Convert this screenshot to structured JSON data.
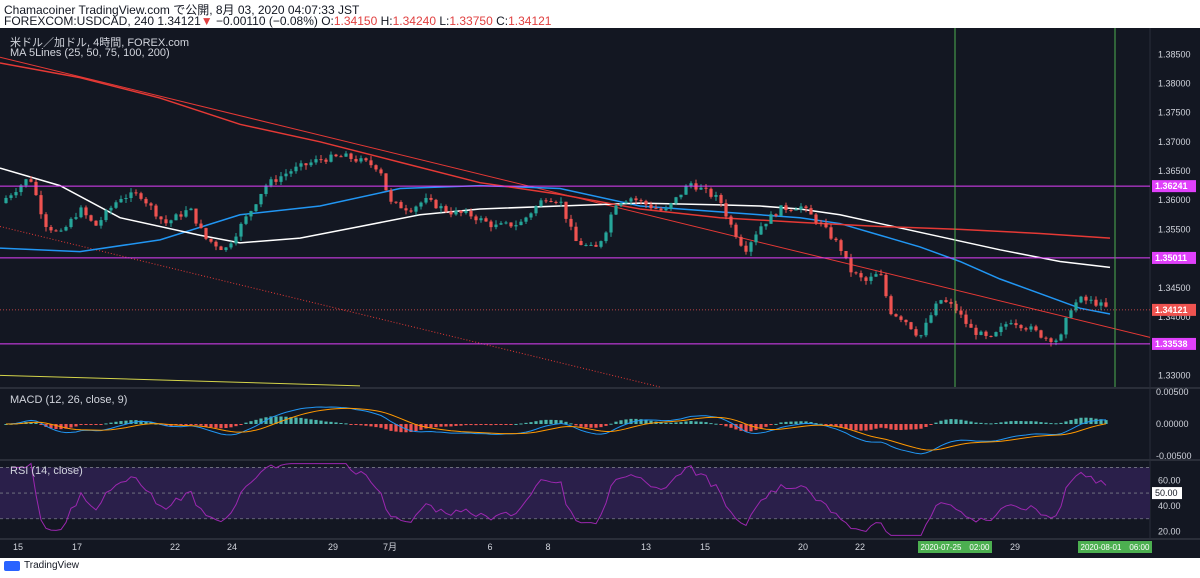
{
  "header": {
    "line1": "Chamacoiner TradingView.com で公開, 8月 03, 2020 04:07:33 JST",
    "symbol": "FOREXCOM:USDCAD, 240",
    "last": "1.34121",
    "change": "−0.00110 (−0.08%)",
    "o_label": "O:",
    "o": "1.34150",
    "h_label": "H:",
    "h": "1.34240",
    "l_label": "L:",
    "l": "1.33750",
    "c_label": "C:",
    "c": "1.34121"
  },
  "pane_labels": {
    "main_title": "米ドル／加ドル, 4時間, FOREX.com",
    "ma": "MA 5Lines (25, 50, 75, 100, 200)",
    "macd": "MACD (12, 26, close, 9)",
    "rsi": "RSI (14, close)"
  },
  "footer": {
    "brand": "TradingView"
  },
  "colors": {
    "background": "#131722",
    "up": "#26a69a",
    "down": "#ef5350",
    "ma25": "#2196f3",
    "ma75": "#ffffff",
    "ma200": "#e53935",
    "ma_yellow": "#d4d44a",
    "level": "#e040fb",
    "vline": "#4caf50",
    "rsi_band": "#2a1f4a",
    "rsi_line": "#9c27b0"
  },
  "chart_data": [
    {
      "type": "candlestick",
      "symbol": "USDCAD",
      "timeframe": "4時間",
      "y_ticks": [
        "1.38500",
        "1.38000",
        "1.37500",
        "1.37000",
        "1.36500",
        "1.36000",
        "1.35500",
        "1.35000",
        "1.34500",
        "1.34000",
        "1.33500",
        "1.33000"
      ],
      "ylim": [
        1.328,
        1.3895
      ],
      "x_ticks": [
        "15",
        "17",
        "22",
        "24",
        "29",
        "7月",
        "6",
        "8",
        "13",
        "15",
        "20",
        "22",
        "29"
      ],
      "price_labels": [
        {
          "value": 1.36241,
          "text": "1.36241",
          "kind": "level"
        },
        {
          "value": 1.35011,
          "text": "1.35011",
          "kind": "level"
        },
        {
          "value": 1.34121,
          "text": "1.34121",
          "kind": "last"
        },
        {
          "value": 1.33538,
          "text": "1.33538",
          "kind": "level"
        }
      ],
      "time_labels": [
        "2020-07-25　02:00",
        "2020-08-01　06:00"
      ],
      "anchors": [
        [
          0,
          1.3595
        ],
        [
          30,
          1.364
        ],
        [
          45,
          1.356
        ],
        [
          60,
          1.354
        ],
        [
          80,
          1.3585
        ],
        [
          95,
          1.3555
        ],
        [
          120,
          1.3605
        ],
        [
          140,
          1.361
        ],
        [
          165,
          1.356
        ],
        [
          190,
          1.3585
        ],
        [
          205,
          1.3535
        ],
        [
          225,
          1.3515
        ],
        [
          250,
          1.358
        ],
        [
          265,
          1.3625
        ],
        [
          290,
          1.365
        ],
        [
          320,
          1.367
        ],
        [
          345,
          1.3675
        ],
        [
          365,
          1.3665
        ],
        [
          380,
          1.3655
        ],
        [
          390,
          1.3595
        ],
        [
          410,
          1.3585
        ],
        [
          425,
          1.36
        ],
        [
          450,
          1.358
        ],
        [
          470,
          1.3575
        ],
        [
          495,
          1.3555
        ],
        [
          520,
          1.356
        ],
        [
          545,
          1.3605
        ],
        [
          560,
          1.36
        ],
        [
          575,
          1.353
        ],
        [
          595,
          1.3515
        ],
        [
          605,
          1.3545
        ],
        [
          615,
          1.3595
        ],
        [
          630,
          1.3605
        ],
        [
          650,
          1.359
        ],
        [
          665,
          1.358
        ],
        [
          690,
          1.363
        ],
        [
          705,
          1.3615
        ],
        [
          720,
          1.36
        ],
        [
          730,
          1.356
        ],
        [
          745,
          1.3515
        ],
        [
          760,
          1.3555
        ],
        [
          780,
          1.3585
        ],
        [
          800,
          1.359
        ],
        [
          820,
          1.356
        ],
        [
          840,
          1.352
        ],
        [
          850,
          1.348
        ],
        [
          865,
          1.346
        ],
        [
          880,
          1.3475
        ],
        [
          890,
          1.341
        ],
        [
          905,
          1.3395
        ],
        [
          920,
          1.3365
        ],
        [
          930,
          1.34
        ],
        [
          940,
          1.343
        ],
        [
          955,
          1.3415
        ],
        [
          970,
          1.338
        ],
        [
          990,
          1.336
        ],
        [
          1010,
          1.3395
        ],
        [
          1030,
          1.338
        ],
        [
          1045,
          1.3365
        ],
        [
          1060,
          1.336
        ],
        [
          1070,
          1.3415
        ],
        [
          1080,
          1.343
        ],
        [
          1095,
          1.3425
        ],
        [
          1110,
          1.3412
        ]
      ],
      "moving_averages": [
        {
          "name": "MA25",
          "color": "#2196f3",
          "points": [
            [
              0,
              1.3518
            ],
            [
              80,
              1.3512
            ],
            [
              160,
              1.3532
            ],
            [
              240,
              1.3575
            ],
            [
              320,
              1.359
            ],
            [
              400,
              1.362
            ],
            [
              480,
              1.3625
            ],
            [
              560,
              1.362
            ],
            [
              640,
              1.359
            ],
            [
              720,
              1.358
            ],
            [
              760,
              1.3575
            ],
            [
              800,
              1.357
            ],
            [
              840,
              1.356
            ],
            [
              880,
              1.354
            ],
            [
              920,
              1.352
            ],
            [
              960,
              1.3495
            ],
            [
              1000,
              1.3465
            ],
            [
              1040,
              1.344
            ],
            [
              1080,
              1.3415
            ],
            [
              1110,
              1.3405
            ]
          ]
        },
        {
          "name": "MA75",
          "color": "#ffffff",
          "points": [
            [
              0,
              1.3655
            ],
            [
              60,
              1.3625
            ],
            [
              120,
              1.357
            ],
            [
              200,
              1.354
            ],
            [
              240,
              1.3527
            ],
            [
              300,
              1.3535
            ],
            [
              360,
              1.3555
            ],
            [
              420,
              1.3575
            ],
            [
              480,
              1.3585
            ],
            [
              560,
              1.359
            ],
            [
              640,
              1.3595
            ],
            [
              720,
              1.3592
            ],
            [
              760,
              1.359
            ],
            [
              800,
              1.3585
            ],
            [
              840,
              1.3575
            ],
            [
              880,
              1.356
            ],
            [
              920,
              1.3545
            ],
            [
              960,
              1.353
            ],
            [
              1000,
              1.3515
            ],
            [
              1060,
              1.3495
            ],
            [
              1110,
              1.3485
            ]
          ]
        },
        {
          "name": "MA200",
          "color": "#e53935",
          "points": [
            [
              0,
              1.3835
            ],
            [
              80,
              1.381
            ],
            [
              160,
              1.3775
            ],
            [
              240,
              1.373
            ],
            [
              320,
              1.37
            ],
            [
              400,
              1.3665
            ],
            [
              480,
              1.363
            ],
            [
              560,
              1.361
            ],
            [
              640,
              1.3585
            ],
            [
              720,
              1.357
            ],
            [
              800,
              1.3562
            ],
            [
              880,
              1.3555
            ],
            [
              960,
              1.355
            ],
            [
              1040,
              1.3543
            ],
            [
              1110,
              1.3535
            ]
          ]
        }
      ],
      "trendlines": [
        {
          "from": [
            0,
            1.3845
          ],
          "to": [
            1150,
            1.3365
          ],
          "color": "#e53935",
          "style": "solid"
        },
        {
          "from": [
            0,
            1.3555
          ],
          "to": [
            660,
            1.328
          ],
          "color": "#e53935",
          "style": "dotted"
        }
      ],
      "yellow_ma": [
        [
          0,
          1.33
        ],
        [
          360,
          1.3282
        ]
      ],
      "vertical_lines_x": [
        955,
        1115
      ]
    },
    {
      "type": "macd",
      "y_ticks": [
        "0.00500",
        "0.00000",
        "-0.00500"
      ],
      "ylim": [
        -0.0055,
        0.0055
      ]
    },
    {
      "type": "rsi",
      "y_ticks": [
        "60.00",
        "50.00",
        "40.00",
        "20.00"
      ],
      "band": [
        30,
        70
      ],
      "ylim": [
        15,
        75
      ],
      "current": "50.00"
    }
  ]
}
